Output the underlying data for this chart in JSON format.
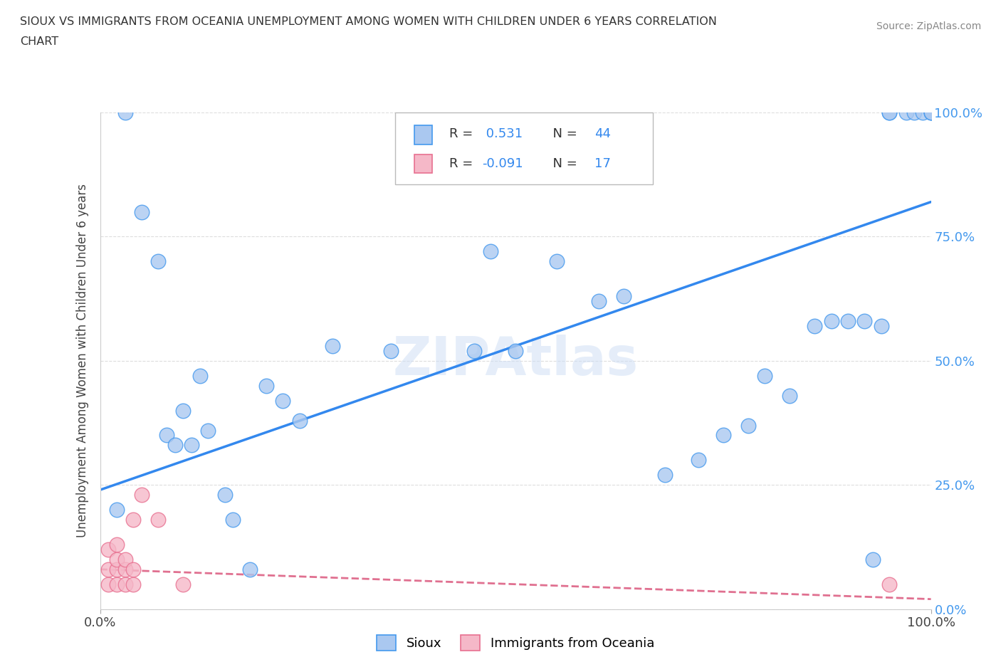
{
  "title_line1": "SIOUX VS IMMIGRANTS FROM OCEANIA UNEMPLOYMENT AMONG WOMEN WITH CHILDREN UNDER 6 YEARS CORRELATION",
  "title_line2": "CHART",
  "source": "Source: ZipAtlas.com",
  "ylabel": "Unemployment Among Women with Children Under 6 years",
  "watermark": "ZIPAtlas",
  "sioux_R": 0.531,
  "sioux_N": 44,
  "oceania_R": -0.091,
  "oceania_N": 17,
  "sioux_color": "#aac8f0",
  "sioux_edge": "#4499ee",
  "oceania_color": "#f5b8c8",
  "oceania_edge": "#e87090",
  "sioux_line_color": "#3388ee",
  "oceania_line_color": "#e07090",
  "sioux_x": [
    0.02,
    0.03,
    0.05,
    0.07,
    0.08,
    0.09,
    0.1,
    0.11,
    0.12,
    0.13,
    0.15,
    0.16,
    0.18,
    0.2,
    0.22,
    0.24,
    0.28,
    0.35,
    0.45,
    0.47,
    0.5,
    0.55,
    0.6,
    0.63,
    0.68,
    0.72,
    0.75,
    0.78,
    0.8,
    0.83,
    0.86,
    0.88,
    0.9,
    0.92,
    0.93,
    0.94,
    0.95,
    0.95,
    0.97,
    0.98,
    0.99,
    1.0,
    1.0,
    1.0
  ],
  "sioux_y": [
    0.2,
    1.0,
    0.8,
    0.7,
    0.35,
    0.33,
    0.4,
    0.33,
    0.47,
    0.36,
    0.23,
    0.18,
    0.08,
    0.45,
    0.42,
    0.38,
    0.53,
    0.52,
    0.52,
    0.72,
    0.52,
    0.7,
    0.62,
    0.63,
    0.27,
    0.3,
    0.35,
    0.37,
    0.47,
    0.43,
    0.57,
    0.58,
    0.58,
    0.58,
    0.1,
    0.57,
    1.0,
    1.0,
    1.0,
    1.0,
    1.0,
    1.0,
    1.0,
    1.0
  ],
  "oceania_x": [
    0.01,
    0.01,
    0.01,
    0.02,
    0.02,
    0.02,
    0.02,
    0.03,
    0.03,
    0.03,
    0.04,
    0.04,
    0.04,
    0.05,
    0.07,
    0.1,
    0.95
  ],
  "oceania_y": [
    0.05,
    0.08,
    0.12,
    0.05,
    0.08,
    0.1,
    0.13,
    0.05,
    0.08,
    0.1,
    0.05,
    0.08,
    0.18,
    0.23,
    0.18,
    0.05,
    0.05
  ],
  "sioux_line_x": [
    0.0,
    1.0
  ],
  "sioux_line_y": [
    0.24,
    0.82
  ],
  "oceania_line_x": [
    0.0,
    1.0
  ],
  "oceania_line_y": [
    0.08,
    0.02
  ],
  "bg_color": "#ffffff",
  "grid_color": "#dddddd",
  "axis_color": "#cccccc",
  "title_color": "#333333",
  "right_tick_color": "#4499ee",
  "ytick_labels": [
    "0.0%",
    "25.0%",
    "50.0%",
    "75.0%",
    "100.0%"
  ],
  "ytick_values": [
    0.0,
    0.25,
    0.5,
    0.75,
    1.0
  ],
  "xtick_labels": [
    "0.0%",
    "100.0%"
  ],
  "xtick_values": [
    0.0,
    1.0
  ]
}
